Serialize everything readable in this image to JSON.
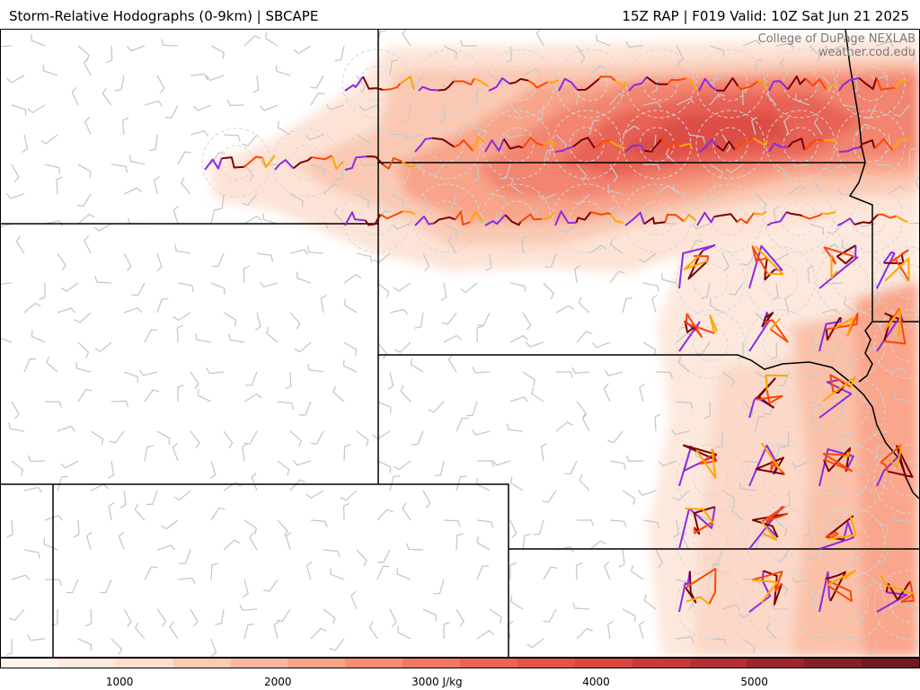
{
  "header": {
    "title_left": "Storm-Relative Hodographs (0-9km) | SBCAPE",
    "title_right": "15Z RAP | F019 Valid: 10Z Sat Jun 21 2025"
  },
  "credit": {
    "line1": "College of DuPage NEXLAB",
    "line2": "weather.cod.edu"
  },
  "colorbar": {
    "colors": [
      "#fff4ee",
      "#ffe8dc",
      "#fedcca",
      "#fcc9b3",
      "#fbb79e",
      "#f9a288",
      "#f68d74",
      "#f27961",
      "#ec6451",
      "#e35447",
      "#d8473f",
      "#c83a38",
      "#b52f33",
      "#9e252d",
      "#862027",
      "#6e1a22"
    ],
    "ticks": [
      {
        "label": "1000",
        "pos": 0.13
      },
      {
        "label": "2000",
        "pos": 0.302
      },
      {
        "label": "3000 J/kg",
        "pos": 0.475
      },
      {
        "label": "4000",
        "pos": 0.648
      },
      {
        "label": "5000",
        "pos": 0.82
      }
    ]
  },
  "hodograph_colors": {
    "layer_0_3km": "#7a0000",
    "layer_3_6km": "#ff4500",
    "layer_6_9km": "#ffa500",
    "layer_top": "#8a2be2"
  }
}
